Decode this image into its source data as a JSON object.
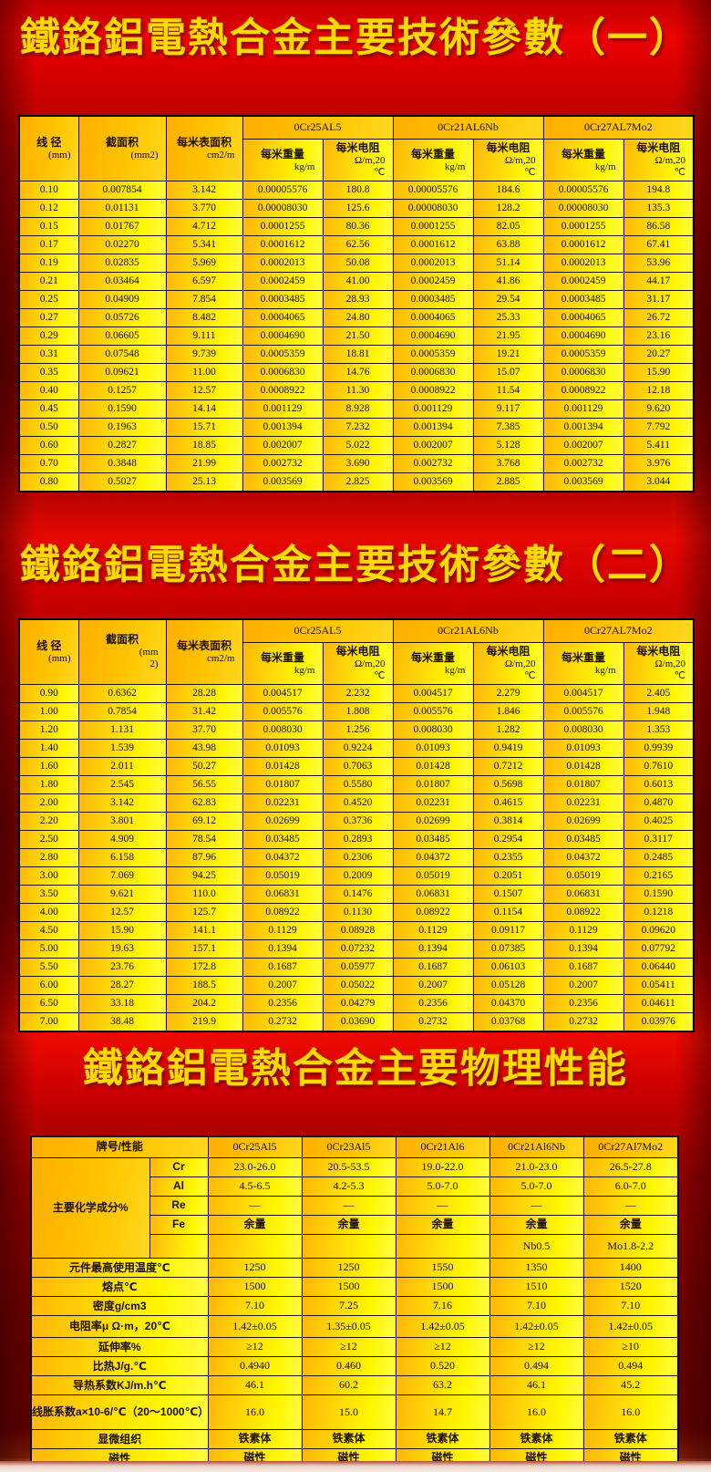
{
  "titles": {
    "table1": "鐵鉻鋁電熱合金主要技術參數（一）",
    "table2": "鐵鉻鋁電熱合金主要技術參數（二）",
    "table3": "鐵鉻鋁電熱合金主要物理性能"
  },
  "colors": {
    "cell_orange": "#ffb707",
    "cell_yellow": "#fff600",
    "background_red_bright": "#ea0300",
    "background_red_dark": "#690000",
    "title_yellow": "#ffd900",
    "border": "#000000"
  },
  "param_table_headers": {
    "col1_lines": [
      "线 径",
      "(mm)"
    ],
    "col3_lines": [
      "每米表面积",
      "cm2/m"
    ],
    "weight_lines": [
      "每米重量",
      "kg/m"
    ],
    "resistance_lines": [
      "每米电阻",
      "Ω/m,20",
      "℃"
    ]
  },
  "table1": {
    "col2_lines": [
      "截面积",
      "(mm2)"
    ],
    "alloys": [
      "0Cr25AL5",
      "0Cr21AL6Nb",
      "0Cr27AL7Mo2"
    ],
    "rows": [
      [
        "0.10",
        "0.007854",
        "3.142",
        "0.00005576",
        "180.8",
        "0.00005576",
        "184.6",
        "0.00005576",
        "194.8"
      ],
      [
        "0.12",
        "0.01131",
        "3.770",
        "0.00008030",
        "125.6",
        "0.00008030",
        "128.2",
        "0.00008030",
        "135.3"
      ],
      [
        "0.15",
        "0.01767",
        "4.712",
        "0.0001255",
        "80.36",
        "0.0001255",
        "82.05",
        "0.0001255",
        "86.58"
      ],
      [
        "0.17",
        "0.02270",
        "5.341",
        "0.0001612",
        "62.56",
        "0.0001612",
        "63.88",
        "0.0001612",
        "67.41"
      ],
      [
        "0.19",
        "0.02835",
        "5.969",
        "0.0002013",
        "50.08",
        "0.0002013",
        "51.14",
        "0.0002013",
        "53.96"
      ],
      [
        "0.21",
        "0.03464",
        "6.597",
        "0.0002459",
        "41.00",
        "0.0002459",
        "41.86",
        "0.0002459",
        "44.17"
      ],
      [
        "0.25",
        "0.04909",
        "7.854",
        "0.0003485",
        "28.93",
        "0.0003485",
        "29.54",
        "0.0003485",
        "31.17"
      ],
      [
        "0.27",
        "0.05726",
        "8.482",
        "0.0004065",
        "24.80",
        "0.0004065",
        "25.33",
        "0.0004065",
        "26.72"
      ],
      [
        "0.29",
        "0.06605",
        "9.111",
        "0.0004690",
        "21.50",
        "0.0004690",
        "21.95",
        "0.0004690",
        "23.16"
      ],
      [
        "0.31",
        "0.07548",
        "9.739",
        "0.0005359",
        "18.81",
        "0.0005359",
        "19.21",
        "0.0005359",
        "20.27"
      ],
      [
        "0.35",
        "0.09621",
        "11.00",
        "0.0006830",
        "14.76",
        "0.0006830",
        "15.07",
        "0.0006830",
        "15.90"
      ],
      [
        "0.40",
        "0.1257",
        "12.57",
        "0.0008922",
        "11.30",
        "0.0008922",
        "11.54",
        "0.0008922",
        "12.18"
      ],
      [
        "0.45",
        "0.1590",
        "14.14",
        "0.001129",
        "8.928",
        "0.001129",
        "9.117",
        "0.001129",
        "9.620"
      ],
      [
        "0.50",
        "0.1963",
        "15.71",
        "0.001394",
        "7.232",
        "0.001394",
        "7.385",
        "0.001394",
        "7.792"
      ],
      [
        "0.60",
        "0.2827",
        "18.85",
        "0.002007",
        "5.022",
        "0.002007",
        "5.128",
        "0.002007",
        "5.411"
      ],
      [
        "0.70",
        "0.3848",
        "21.99",
        "0.002732",
        "3.690",
        "0.002732",
        "3.768",
        "0.002732",
        "3.976"
      ],
      [
        "0.80",
        "0.5027",
        "25.13",
        "0.003569",
        "2.825",
        "0.003569",
        "2.885",
        "0.003569",
        "3.044"
      ]
    ]
  },
  "table2": {
    "col2_lines": [
      "截面积",
      "(mm",
      "2)"
    ],
    "alloys": [
      "0Cr25AL5",
      "0Cr21AL6Nb",
      "0Cr27AL7Mo2"
    ],
    "rows": [
      [
        "0.90",
        "0.6362",
        "28.28",
        "0.004517",
        "2.232",
        "0.004517",
        "2.279",
        "0.004517",
        "2.405"
      ],
      [
        "1.00",
        "0.7854",
        "31.42",
        "0.005576",
        "1.808",
        "0.005576",
        "1.846",
        "0.005576",
        "1.948"
      ],
      [
        "1.20",
        "1.131",
        "37.70",
        "0.008030",
        "1.256",
        "0.008030",
        "1.282",
        "0.008030",
        "1.353"
      ],
      [
        "1.40",
        "1.539",
        "43.98",
        "0.01093",
        "0.9224",
        "0.01093",
        "0.9419",
        "0.01093",
        "0.9939"
      ],
      [
        "1.60",
        "2.011",
        "50.27",
        "0.01428",
        "0.7063",
        "0.01428",
        "0.7212",
        "0.01428",
        "0.7610"
      ],
      [
        "1.80",
        "2.545",
        "56.55",
        "0.01807",
        "0.5580",
        "0.01807",
        "0.5698",
        "0.01807",
        "0.6013"
      ],
      [
        "2.00",
        "3.142",
        "62.83",
        "0.02231",
        "0.4520",
        "0.02231",
        "0.4615",
        "0.02231",
        "0.4870"
      ],
      [
        "2.20",
        "3.801",
        "69.12",
        "0.02699",
        "0.3736",
        "0.02699",
        "0.3814",
        "0.02699",
        "0.4025"
      ],
      [
        "2.50",
        "4.909",
        "78.54",
        "0.03485",
        "0.2893",
        "0.03485",
        "0.2954",
        "0.03485",
        "0.3117"
      ],
      [
        "2.80",
        "6.158",
        "87.96",
        "0.04372",
        "0.2306",
        "0.04372",
        "0.2355",
        "0.04372",
        "0.2485"
      ],
      [
        "3.00",
        "7.069",
        "94.25",
        "0.05019",
        "0.2009",
        "0.05019",
        "0.2051",
        "0.05019",
        "0.2165"
      ],
      [
        "3.50",
        "9.621",
        "110.0",
        "0.06831",
        "0.1476",
        "0.06831",
        "0.1507",
        "0.06831",
        "0.1590"
      ],
      [
        "4.00",
        "12.57",
        "125.7",
        "0.08922",
        "0.1130",
        "0.08922",
        "0.1154",
        "0.08922",
        "0.1218"
      ],
      [
        "4.50",
        "15.90",
        "141.1",
        "0.1129",
        "0.08928",
        "0.1129",
        "0.09117",
        "0.1129",
        "0.09620"
      ],
      [
        "5.00",
        "19.63",
        "157.1",
        "0.1394",
        "0.07232",
        "0.1394",
        "0.07385",
        "0.1394",
        "0.07792"
      ],
      [
        "5.50",
        "23.76",
        "172.8",
        "0.1687",
        "0.05977",
        "0.1687",
        "0.06103",
        "0.1687",
        "0.06440"
      ],
      [
        "6.00",
        "28.27",
        "188.5",
        "0.2007",
        "0.05022",
        "0.2007",
        "0.05128",
        "0.2007",
        "0.05411"
      ],
      [
        "6.50",
        "33.18",
        "204.2",
        "0.2356",
        "0.04279",
        "0.2356",
        "0.04370",
        "0.2356",
        "0.04611"
      ],
      [
        "7.00",
        "38.48",
        "219.9",
        "0.2732",
        "0.03690",
        "0.2732",
        "0.03768",
        "0.2732",
        "0.03976"
      ]
    ]
  },
  "table3": {
    "corner_label": "牌号/性能",
    "alloys": [
      "0Cr25Al5",
      "0Cr23Al5",
      "0Cr21Al6",
      "0Cr21Al6Nb",
      "0Cr27Al7Mo2"
    ],
    "chem_group_label": "主要化学成分%",
    "chem_rows": [
      {
        "element": "Cr",
        "values": [
          "23.0-26.0",
          "20.5-53.5",
          "19.0-22.0",
          "21.0-23.0",
          "26.5-27.8"
        ]
      },
      {
        "element": "Al",
        "values": [
          "4.5-6.5",
          "4.2-5.3",
          "5.0-7.0",
          "5.0-7.0",
          "6.0-7.0"
        ]
      },
      {
        "element": "Re",
        "values": [
          "—",
          "—",
          "—",
          "—",
          "—"
        ]
      },
      {
        "element": "Fe",
        "values": [
          "余量",
          "余量",
          "余量",
          "余量",
          "余量"
        ]
      },
      {
        "element": "",
        "values": [
          "",
          "",
          "",
          "Nb0.5",
          "Mo1.8-2.2"
        ]
      }
    ],
    "property_rows": [
      {
        "label": "元件最高使用温度℃",
        "values": [
          "1250",
          "1250",
          "1550",
          "1350",
          "1400"
        ]
      },
      {
        "label": "熔点℃",
        "values": [
          "1500",
          "1500",
          "1500",
          "1510",
          "1520"
        ]
      },
      {
        "label": "密度g/cm3",
        "values": [
          "7.10",
          "7.25",
          "7.16",
          "7.10",
          "7.10"
        ]
      },
      {
        "label": "电阻率μ Ω·m，20℃",
        "values": [
          "1.42±0.05",
          "1.35±0.05",
          "1.42±0.05",
          "1.42±0.05",
          "1.42±0.05"
        ]
      },
      {
        "label": "延伸率%",
        "values": [
          "≥12",
          "≥12",
          "≥12",
          "≥12",
          "≥10"
        ]
      },
      {
        "label": "比热J/g.℃",
        "values": [
          "0.4940",
          "0.460",
          "0.520",
          "0.494",
          "0.494"
        ]
      },
      {
        "label": "导热系数KJ/m.h℃",
        "values": [
          "46.1",
          "60.2",
          "63.2",
          "46.1",
          "45.2"
        ]
      },
      {
        "label": "线胀系数a×10-6/℃（20～1000℃）",
        "values": [
          "16.0",
          "15.0",
          "14.7",
          "16.0",
          "16.0"
        ]
      },
      {
        "label": "显微组织",
        "values": [
          "铁素体",
          "铁素体",
          "铁素体",
          "铁素体",
          "铁素体"
        ]
      },
      {
        "label": "磁性",
        "values": [
          "磁性",
          "磁性",
          "磁性",
          "磁性",
          "磁性"
        ]
      }
    ]
  }
}
